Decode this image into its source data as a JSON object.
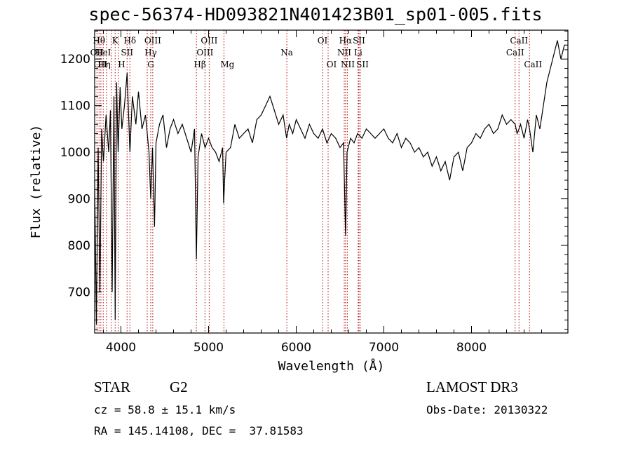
{
  "chart_data": {
    "type": "line",
    "title": "spec-56374-HD093821N401423B01_sp01-005.fits",
    "xlabel": "Wavelength (Å)",
    "ylabel": "Flux (relative)",
    "xlim": [
      3700,
      9100
    ],
    "ylim": [
      612,
      1262
    ],
    "x_ticks": [
      4000,
      5000,
      6000,
      7000,
      8000
    ],
    "y_ticks": [
      700,
      800,
      900,
      1000,
      1100,
      1200
    ],
    "grid": false,
    "line_color": "#000000",
    "marker_color": "#b30000",
    "series": [
      {
        "x": [
          3700,
          3720,
          3740,
          3760,
          3780,
          3800,
          3830,
          3860,
          3880,
          3900,
          3920,
          3934,
          3950,
          3968,
          3990,
          4010,
          4040,
          4070,
          4102,
          4130,
          4170,
          4200,
          4240,
          4280,
          4320,
          4340,
          4360,
          4383,
          4400,
          4440,
          4480,
          4520,
          4560,
          4600,
          4650,
          4700,
          4750,
          4800,
          4840,
          4861,
          4880,
          4920,
          4960,
          5000,
          5040,
          5080,
          5120,
          5160,
          5172,
          5183,
          5200,
          5250,
          5300,
          5350,
          5400,
          5450,
          5500,
          5550,
          5600,
          5650,
          5700,
          5750,
          5800,
          5850,
          5890,
          5920,
          5960,
          6000,
          6050,
          6100,
          6150,
          6200,
          6250,
          6300,
          6350,
          6400,
          6450,
          6500,
          6540,
          6563,
          6580,
          6620,
          6660,
          6700,
          6750,
          6800,
          6850,
          6900,
          6950,
          7000,
          7050,
          7100,
          7150,
          7200,
          7250,
          7300,
          7350,
          7400,
          7450,
          7500,
          7550,
          7600,
          7650,
          7700,
          7750,
          7800,
          7850,
          7900,
          7950,
          8000,
          8050,
          8100,
          8150,
          8200,
          8250,
          8300,
          8350,
          8400,
          8450,
          8498,
          8520,
          8542,
          8560,
          8600,
          8640,
          8662,
          8700,
          8740,
          8780,
          8820,
          8860,
          8900,
          8940,
          8980,
          9020,
          9060,
          9100
        ],
        "y": [
          940,
          630,
          1010,
          700,
          1050,
          980,
          1080,
          1000,
          1090,
          700,
          1120,
          640,
          1150,
          1000,
          1140,
          1050,
          1100,
          1170,
          1000,
          1120,
          1060,
          1130,
          1050,
          1080,
          1000,
          900,
          1010,
          840,
          1020,
          1060,
          1080,
          1010,
          1050,
          1070,
          1040,
          1060,
          1030,
          1000,
          1050,
          770,
          990,
          1040,
          1010,
          1030,
          1010,
          1000,
          980,
          1010,
          890,
          940,
          1000,
          1010,
          1060,
          1030,
          1040,
          1050,
          1020,
          1070,
          1080,
          1100,
          1120,
          1090,
          1060,
          1080,
          1030,
          1060,
          1040,
          1070,
          1050,
          1030,
          1060,
          1040,
          1030,
          1050,
          1020,
          1040,
          1030,
          1010,
          1020,
          820,
          1000,
          1030,
          1020,
          1040,
          1030,
          1050,
          1040,
          1030,
          1040,
          1050,
          1030,
          1020,
          1040,
          1010,
          1030,
          1020,
          1000,
          1010,
          990,
          1000,
          970,
          990,
          960,
          980,
          940,
          990,
          1000,
          960,
          1010,
          1020,
          1040,
          1030,
          1050,
          1060,
          1040,
          1050,
          1080,
          1060,
          1070,
          1060,
          1040,
          1050,
          1060,
          1030,
          1070,
          1050,
          1000,
          1080,
          1050,
          1100,
          1150,
          1180,
          1210,
          1240,
          1200,
          1230,
          1230
        ]
      }
    ],
    "lines": [
      {
        "w": 3726,
        "top": "OII",
        "top_row": 1,
        "bottom": "OII",
        "bottom_row": 2
      },
      {
        "w": 3750,
        "top": "Hθ",
        "top_row": 0
      },
      {
        "w": 3771,
        "bottom": "Hη",
        "bottom_row": 2
      },
      {
        "w": 3798,
        "top": "HeI",
        "top_row": 1
      },
      {
        "w": 3835,
        "top": "",
        "top_row": 0
      },
      {
        "w": 3889,
        "top": "",
        "top_row": 0
      },
      {
        "w": 3934,
        "top": "K",
        "top_row": 0
      },
      {
        "w": 3968,
        "bottom": "H",
        "bottom_row": 2
      },
      {
        "w": 4070,
        "top": "SII",
        "top_row": 1
      },
      {
        "w": 4102,
        "top": "Hδ",
        "top_row": 0
      },
      {
        "w": 4300,
        "bottom": "G",
        "bottom_row": 2
      },
      {
        "w": 4340,
        "top": "Hγ",
        "top_row": 1
      },
      {
        "w": 4363,
        "top": "OIII",
        "top_row": 0
      },
      {
        "w": 4861,
        "bottom": "Hβ",
        "bottom_row": 2
      },
      {
        "w": 4959,
        "top": "OIII",
        "top_row": 1
      },
      {
        "w": 5007,
        "top": "OIII",
        "top_row": 0
      },
      {
        "w": 5175,
        "bottom": "Mg",
        "bottom_row": 2
      },
      {
        "w": 5893,
        "top": "Na",
        "top_row": 1
      },
      {
        "w": 6300,
        "top": "OI",
        "top_row": 0
      },
      {
        "w": 6364,
        "bottom": "OI",
        "bottom_row": 2
      },
      {
        "w": 6548,
        "top": "NII",
        "top_row": 1,
        "bottom": "NII",
        "bottom_row": 2
      },
      {
        "w": 6563,
        "top": "Hα",
        "top_row": 0
      },
      {
        "w": 6583,
        "top": "",
        "top_row": 0
      },
      {
        "w": 6707,
        "top": "Li",
        "top_row": 1
      },
      {
        "w": 6716,
        "top": "SII",
        "top_row": 0,
        "bottom": "SII",
        "bottom_row": 2
      },
      {
        "w": 6731,
        "top": "",
        "top_row": 0
      },
      {
        "w": 8498,
        "top": "CaII",
        "top_row": 1
      },
      {
        "w": 8542,
        "top": "CaII",
        "top_row": 0
      },
      {
        "w": 8662,
        "bottom": "CaII",
        "bottom_row": 2
      }
    ]
  },
  "info": {
    "object_class": "STAR",
    "subclass": "G2",
    "survey": "LAMOST DR3",
    "redshift": "cz = 58.8 ± 15.1 km/s",
    "obs_date": "Obs-Date: 20130322",
    "coords": "RA = 145.14108, DEC =  37.81583"
  }
}
